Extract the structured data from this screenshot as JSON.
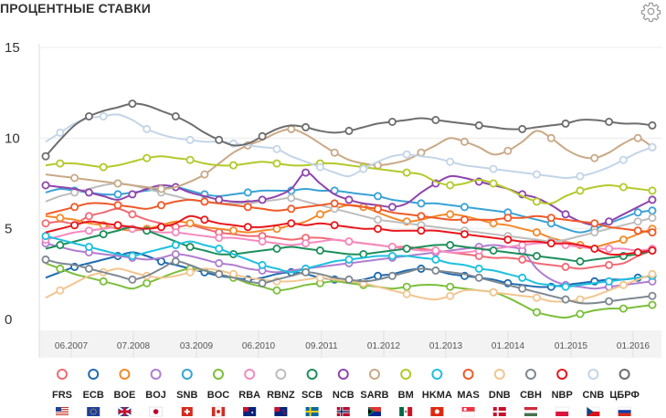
{
  "title": "ПРОЦЕНТНЫЕ СТАВКИ",
  "settings_icon": "gear-icon",
  "chart_data": {
    "type": "line",
    "title": "ПРОЦЕНТНЫЕ СТАВКИ",
    "xlabel": "",
    "ylabel": "",
    "ylim": [
      0,
      15
    ],
    "yticks": [
      0,
      5,
      10,
      15
    ],
    "xticks": [
      "06.2007",
      "07.2008",
      "03.2009",
      "06.2010",
      "09.2011",
      "01.2012",
      "01.2013",
      "01.2014",
      "01.2015",
      "01.2016"
    ],
    "x": [
      "06.2007",
      "07.2007",
      "09.2007",
      "11.2007",
      "01.2008",
      "03.2008",
      "05.2008",
      "07.2008",
      "09.2008",
      "11.2008",
      "01.2009",
      "03.2009",
      "05.2009",
      "07.2009",
      "09.2009",
      "11.2009",
      "01.2010",
      "03.2010",
      "06.2010",
      "09.2010",
      "12.2010",
      "03.2011",
      "06.2011",
      "09.2011",
      "12.2011",
      "01.2012",
      "04.2012",
      "07.2012",
      "10.2012",
      "01.2013",
      "04.2013",
      "07.2013",
      "10.2013",
      "01.2014",
      "04.2014",
      "07.2014",
      "10.2014",
      "01.2015",
      "04.2015",
      "07.2015",
      "10.2015",
      "01.2016",
      "04.2016"
    ],
    "grid": true,
    "legend_position": "bottom",
    "series": [
      {
        "name": "FRS",
        "color": "#f06a74",
        "flag": "us-flag",
        "values": [
          5.3,
          5.4,
          5.3,
          5.7,
          5.9,
          6.1,
          5.8,
          5.5,
          5.3,
          5.1,
          5.2,
          5.0,
          4.8,
          4.7,
          4.6,
          4.6,
          4.5,
          4.4,
          4.5,
          4.5,
          4.4,
          4.3,
          4.2,
          4.1,
          4.0,
          4.0,
          3.9,
          3.8,
          3.7,
          3.6,
          3.5,
          3.4,
          3.4,
          3.3,
          3.1,
          3.0,
          2.9,
          2.8,
          2.9,
          3.0,
          3.1,
          3.5,
          3.8
        ]
      },
      {
        "name": "ECB",
        "color": "#1e6bb0",
        "flag": "eu-flag",
        "values": [
          2.3,
          2.6,
          2.9,
          3.1,
          3.3,
          3.5,
          3.7,
          3.5,
          3.2,
          3.0,
          2.8,
          2.6,
          2.4,
          2.3,
          2.2,
          2.3,
          2.5,
          2.6,
          2.5,
          2.3,
          2.2,
          2.1,
          2.2,
          2.4,
          2.5,
          2.7,
          2.8,
          2.7,
          2.5,
          2.4,
          2.3,
          2.2,
          2.0,
          1.9,
          1.8,
          1.8,
          1.9,
          2.0,
          2.1,
          2.2,
          2.2,
          2.3,
          2.4
        ]
      },
      {
        "name": "BOE",
        "color": "#f28a2a",
        "flag": "uk-flag",
        "values": [
          5.7,
          5.6,
          5.5,
          5.3,
          5.2,
          5.0,
          4.9,
          5.0,
          5.2,
          5.4,
          5.3,
          5.1,
          5.0,
          4.9,
          4.8,
          4.9,
          5.0,
          5.2,
          5.4,
          5.8,
          6.1,
          6.3,
          6.2,
          5.9,
          5.6,
          5.4,
          5.5,
          5.7,
          5.8,
          5.7,
          5.5,
          5.3,
          5.2,
          5.0,
          4.8,
          4.5,
          4.3,
          4.1,
          4.0,
          4.2,
          4.4,
          4.7,
          5.0
        ]
      },
      {
        "name": "BOJ",
        "color": "#b07ed0",
        "flag": "jp-flag",
        "values": [
          4.2,
          4.0,
          3.8,
          3.7,
          3.6,
          3.5,
          3.4,
          3.3,
          3.4,
          3.6,
          3.5,
          3.3,
          3.1,
          3.0,
          2.8,
          2.7,
          2.6,
          2.7,
          2.8,
          2.9,
          3.0,
          3.1,
          3.2,
          3.3,
          3.4,
          3.5,
          3.6,
          3.7,
          3.8,
          3.9,
          4.0,
          4.1,
          4.0,
          3.8,
          2.8,
          2.2,
          1.9,
          1.8,
          1.7,
          1.8,
          1.9,
          2.0,
          2.1
        ]
      },
      {
        "name": "SNB",
        "color": "#3aa2d6",
        "flag": "ch-flag",
        "values": [
          7.0,
          7.2,
          7.1,
          7.0,
          6.9,
          6.9,
          7.0,
          7.1,
          7.2,
          7.3,
          7.1,
          6.9,
          6.8,
          6.9,
          7.0,
          7.1,
          7.1,
          7.1,
          7.2,
          7.1,
          7.1,
          7.0,
          6.9,
          6.8,
          6.6,
          6.5,
          6.4,
          6.4,
          6.3,
          6.2,
          6.1,
          6.0,
          5.9,
          5.7,
          5.5,
          5.3,
          5.0,
          4.8,
          5.0,
          5.3,
          5.6,
          5.9,
          6.0
        ]
      },
      {
        "name": "BOC",
        "color": "#7bbf3a",
        "flag": "ca-flag",
        "values": [
          3.1,
          2.8,
          2.5,
          2.3,
          2.1,
          1.9,
          1.7,
          2.0,
          2.3,
          2.6,
          2.8,
          2.7,
          2.5,
          2.3,
          2.0,
          1.8,
          1.6,
          1.7,
          1.9,
          2.0,
          2.1,
          2.0,
          1.9,
          1.8,
          1.7,
          1.8,
          1.9,
          1.9,
          1.8,
          1.7,
          1.6,
          1.5,
          1.2,
          0.8,
          0.4,
          0.2,
          0.1,
          0.3,
          0.5,
          0.6,
          0.6,
          0.7,
          0.8
        ]
      },
      {
        "name": "RBA",
        "color": "#f58ac0",
        "flag": "au-flag",
        "values": [
          4.4,
          4.6,
          4.8,
          4.9,
          5.0,
          5.1,
          5.0,
          4.9,
          4.8,
          4.8,
          4.7,
          4.6,
          4.5,
          4.5,
          4.4,
          4.3,
          4.2,
          4.1,
          4.2,
          4.3,
          4.4,
          4.3,
          4.2,
          4.1,
          4.0,
          3.9,
          3.8,
          3.8,
          3.7,
          3.7,
          3.8,
          3.9,
          4.0,
          4.1,
          4.2,
          4.2,
          4.1,
          4.0,
          3.9,
          3.9,
          3.9,
          3.8,
          3.9
        ]
      },
      {
        "name": "RBNZ",
        "color": "#bdbdbd",
        "flag": "nz-flag",
        "values": [
          6.5,
          6.8,
          7.0,
          7.2,
          7.4,
          7.5,
          7.4,
          7.2,
          7.0,
          6.8,
          6.6,
          6.5,
          6.4,
          6.4,
          6.4,
          6.5,
          6.6,
          6.7,
          6.5,
          6.3,
          6.1,
          5.9,
          5.7,
          5.5,
          5.4,
          5.3,
          5.2,
          5.1,
          5.0,
          4.9,
          4.8,
          4.7,
          4.6,
          4.5,
          4.4,
          4.3,
          4.4,
          4.6,
          4.8,
          5.0,
          5.2,
          5.4,
          5.6
        ]
      },
      {
        "name": "SCB",
        "color": "#1d8f5b",
        "flag": "se-flag",
        "values": [
          3.9,
          4.1,
          4.3,
          4.5,
          4.7,
          4.9,
          5.1,
          4.9,
          4.6,
          4.3,
          4.0,
          3.8,
          3.6,
          3.6,
          3.7,
          3.8,
          3.9,
          4.0,
          3.9,
          3.8,
          3.7,
          3.6,
          3.6,
          3.7,
          3.8,
          3.9,
          4.0,
          4.1,
          4.1,
          4.0,
          3.9,
          3.8,
          3.7,
          3.6,
          3.5,
          3.4,
          3.3,
          3.2,
          3.3,
          3.4,
          3.5,
          3.6,
          3.8
        ]
      },
      {
        "name": "NCB",
        "color": "#8e44ad",
        "flag": "no-flag",
        "values": [
          7.4,
          7.3,
          7.2,
          7.0,
          6.8,
          6.6,
          6.9,
          7.2,
          7.4,
          7.3,
          7.0,
          6.8,
          6.6,
          6.5,
          6.5,
          6.6,
          6.8,
          7.2,
          8.1,
          7.5,
          6.9,
          6.6,
          6.4,
          6.3,
          6.2,
          6.4,
          7.0,
          7.5,
          7.9,
          7.8,
          7.6,
          7.4,
          7.2,
          6.9,
          6.7,
          6.3,
          5.8,
          5.4,
          5.2,
          5.4,
          5.8,
          6.2,
          6.6
        ]
      },
      {
        "name": "SARB",
        "color": "#c9a986",
        "flag": "za-flag",
        "values": [
          8.0,
          7.9,
          7.8,
          7.7,
          7.6,
          7.5,
          7.4,
          7.3,
          7.2,
          7.3,
          7.6,
          8.0,
          8.6,
          9.2,
          9.6,
          9.9,
          10.3,
          10.5,
          10.2,
          9.7,
          9.2,
          8.8,
          8.6,
          8.5,
          8.6,
          8.8,
          9.2,
          9.6,
          10.0,
          9.8,
          9.5,
          9.1,
          9.3,
          9.8,
          10.4,
          10.0,
          9.4,
          9.0,
          8.9,
          9.2,
          9.7,
          10.0,
          9.5
        ]
      },
      {
        "name": "BM",
        "color": "#b4c92a",
        "flag": "mx-flag",
        "values": [
          8.5,
          8.6,
          8.6,
          8.5,
          8.4,
          8.5,
          8.7,
          8.9,
          9.0,
          8.9,
          8.8,
          8.6,
          8.5,
          8.5,
          8.6,
          8.7,
          8.6,
          8.5,
          8.5,
          8.6,
          8.6,
          8.5,
          8.4,
          8.3,
          8.2,
          8.1,
          8.0,
          7.6,
          7.4,
          7.5,
          7.7,
          7.5,
          7.2,
          6.8,
          6.5,
          6.4,
          6.8,
          7.1,
          7.3,
          7.4,
          7.3,
          7.2,
          7.1
        ]
      },
      {
        "name": "HKMA",
        "color": "#1ec0e0",
        "flag": "hk-flag",
        "values": [
          4.6,
          4.4,
          4.2,
          4.0,
          3.8,
          3.6,
          3.5,
          3.7,
          3.9,
          4.1,
          4.3,
          4.1,
          3.9,
          3.6,
          3.3,
          3.0,
          2.8,
          2.6,
          2.8,
          3.0,
          3.2,
          3.3,
          3.4,
          3.5,
          3.5,
          3.5,
          3.4,
          3.3,
          3.1,
          3.0,
          2.8,
          2.7,
          2.5,
          2.3,
          2.0,
          1.9,
          1.8,
          1.9,
          2.0,
          2.1,
          2.2,
          2.3,
          2.4
        ]
      },
      {
        "name": "MAS",
        "color": "#ef5a28",
        "flag": "sg-flag",
        "values": [
          5.8,
          6.0,
          6.2,
          6.4,
          6.4,
          6.3,
          6.2,
          6.1,
          6.3,
          6.5,
          6.6,
          6.5,
          6.4,
          6.3,
          6.2,
          6.1,
          6.0,
          6.1,
          6.2,
          6.3,
          6.4,
          6.3,
          6.2,
          6.1,
          5.9,
          5.8,
          5.7,
          5.6,
          5.5,
          5.5,
          5.5,
          5.5,
          5.6,
          5.6,
          5.7,
          5.6,
          5.5,
          5.4,
          5.3,
          5.1,
          5.0,
          4.9,
          4.8
        ]
      },
      {
        "name": "DNB",
        "color": "#f2c58f",
        "flag": "dk-flag",
        "values": [
          1.2,
          1.6,
          2.0,
          2.4,
          2.6,
          2.8,
          2.6,
          2.4,
          2.3,
          2.4,
          2.6,
          2.8,
          2.7,
          2.5,
          2.3,
          2.2,
          2.1,
          2.1,
          2.2,
          2.3,
          2.2,
          2.1,
          2.0,
          1.8,
          1.6,
          1.4,
          1.2,
          1.1,
          1.3,
          1.6,
          1.6,
          1.5,
          1.4,
          1.3,
          1.2,
          1.0,
          1.0,
          1.1,
          1.3,
          1.6,
          1.9,
          2.2,
          2.5
        ]
      },
      {
        "name": "CBH",
        "color": "#7d8891",
        "flag": "hu-flag",
        "values": [
          3.3,
          3.1,
          3.0,
          2.8,
          2.6,
          2.4,
          2.2,
          2.4,
          2.8,
          3.2,
          3.0,
          2.7,
          2.5,
          2.3,
          2.1,
          2.0,
          2.2,
          2.4,
          2.6,
          2.5,
          2.3,
          2.2,
          2.1,
          2.2,
          2.4,
          2.6,
          2.8,
          2.7,
          2.6,
          2.5,
          2.3,
          2.1,
          1.9,
          1.7,
          1.5,
          1.3,
          1.1,
          0.9,
          0.9,
          1.0,
          1.1,
          1.2,
          1.3
        ]
      },
      {
        "name": "NBP",
        "color": "#e8161b",
        "flag": "pl-flag",
        "values": [
          4.8,
          5.0,
          5.2,
          5.4,
          5.3,
          5.2,
          5.1,
          5.0,
          5.1,
          5.3,
          5.7,
          5.5,
          5.3,
          5.2,
          5.1,
          5.1,
          5.2,
          5.3,
          5.2,
          5.3,
          5.2,
          5.1,
          5.0,
          5.0,
          4.9,
          4.9,
          4.9,
          4.9,
          4.8,
          4.7,
          4.6,
          4.5,
          4.4,
          4.3,
          4.3,
          4.2,
          4.2,
          4.1,
          3.9,
          3.6,
          3.6,
          3.7,
          3.8
        ]
      },
      {
        "name": "CNB",
        "color": "#c3d5e8",
        "flag": "cz-flag",
        "values": [
          9.8,
          10.3,
          10.8,
          11.1,
          11.2,
          11.3,
          11.0,
          10.5,
          10.2,
          10.0,
          9.9,
          9.8,
          9.8,
          9.7,
          9.6,
          9.5,
          9.4,
          9.0,
          8.7,
          8.4,
          8.1,
          7.9,
          8.3,
          8.7,
          9.0,
          9.1,
          9.0,
          8.9,
          8.7,
          8.5,
          8.4,
          8.3,
          8.2,
          8.1,
          8.0,
          7.9,
          7.8,
          7.9,
          8.1,
          8.4,
          8.8,
          9.2,
          9.5
        ]
      },
      {
        "name": "ЦБРФ",
        "color": "#6d6d6d",
        "flag": "ru-flag",
        "values": [
          9.0,
          9.9,
          10.7,
          11.2,
          11.5,
          11.7,
          11.9,
          11.8,
          11.5,
          11.2,
          10.8,
          10.3,
          9.9,
          9.6,
          9.7,
          10.1,
          10.5,
          10.7,
          10.6,
          10.4,
          10.3,
          10.4,
          10.6,
          10.8,
          10.9,
          11.0,
          11.1,
          11.0,
          10.9,
          10.8,
          10.7,
          10.6,
          10.5,
          10.5,
          10.6,
          10.7,
          10.8,
          11.0,
          11.0,
          10.9,
          10.8,
          10.8,
          10.7
        ]
      }
    ]
  }
}
